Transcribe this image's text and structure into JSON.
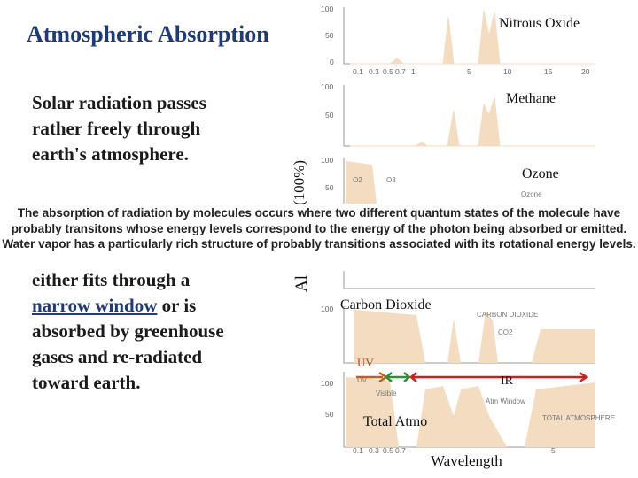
{
  "slide": {
    "title": "Atmospheric Absorption",
    "left_top": "Solar radiation passes rather freely through earth's atmosphere.",
    "left_bottom_before": "either fits through a ",
    "left_bottom_link": "narrow window",
    "left_bottom_after": " or is absorbed by greenhouse gases and re-radiated toward earth.",
    "popup": "The absorption of radiation by molecules occurs where two different quantum states of the molecule have probably transitons whose energy levels correspond to the energy of the photon being absorbed or emitted. Water vapor has a particularly rich structure of probably transitions associated with its rotational energy levels.",
    "y_axis_label": "(100%)",
    "y_axis_fragment": "Al"
  },
  "panels": {
    "nitrous": "Nitrous Oxide",
    "methane": "Methane",
    "ozone": "Ozone",
    "carbon": "Carbon Dioxide",
    "total": "Total Atmo",
    "wavelength": "Wavelength",
    "uv": "UV",
    "ir": "IR"
  },
  "figure_text": {
    "o2": "O2",
    "o3": "O3",
    "ozone_small": "Ozone",
    "carbon_dioxide": "CARBON DIOXIDE",
    "co2": "CO2",
    "uv_faint": "UV",
    "visible": "Visible",
    "atm_window": "Atm\nWindow",
    "total_atmosphere": "TOTAL\nATMOSPHERE",
    "ticks_y": [
      "100",
      "50",
      "0"
    ],
    "ticks_x": [
      "0.1",
      "0.3",
      "0.5",
      "0.7",
      "1",
      "5",
      "10",
      "15",
      "20"
    ]
  },
  "colors": {
    "title": "#1f3a7a",
    "spectrum_fill": "#f3dcc0",
    "uv_arrow": "#d4561a",
    "visible_arrow": "#2f8f3a",
    "ir_arrow": "#d11f1f"
  }
}
